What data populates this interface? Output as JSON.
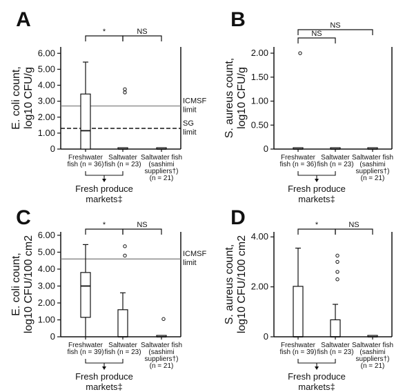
{
  "panels": [
    {
      "letter": "A",
      "chart_data": {
        "type": "box",
        "ylabel_line1": "E. coli count,",
        "ylabel_line2": "log10 CFU/g",
        "ylim": [
          0,
          6.4
        ],
        "yticks": [
          "0",
          "1.00",
          "2.00",
          "3.00",
          "4.00",
          "5.00",
          "6.00"
        ],
        "ytick_values": [
          0,
          1,
          2,
          3,
          4,
          5,
          6
        ],
        "categories": [
          {
            "line1": "Freshwater",
            "line2": "fish (n = 36)",
            "line3": "",
            "line4": ""
          },
          {
            "line1": "Saltwater",
            "line2": "fish (n = 23)",
            "line3": "",
            "line4": ""
          },
          {
            "line1": "Saltwater fish",
            "line2": "(sashimi",
            "line3": "suppliers†)",
            "line4": "(n = 21)"
          }
        ],
        "boxes": [
          {
            "whisker_low": 0,
            "q1": 0,
            "median": 1.15,
            "q3": 3.45,
            "whisker_high": 5.45,
            "outliers": []
          },
          {
            "whisker_low": 0,
            "q1": 0,
            "median": 0,
            "q3": 0,
            "whisker_high": 0,
            "outliers": [
              3.55,
              3.75
            ]
          },
          {
            "whisker_low": 0,
            "q1": 0,
            "median": 0,
            "q3": 0,
            "whisker_high": 0,
            "outliers": []
          }
        ],
        "ref_lines": [
          {
            "value": 2.7,
            "style": "solid",
            "label1": "ICMSF",
            "label2": "limit"
          },
          {
            "value": 1.3,
            "style": "dashed",
            "label1": "SG",
            "label2": "limit"
          }
        ],
        "comparisons": [
          {
            "from": 0,
            "to": 1,
            "label": "*",
            "level": 0
          },
          {
            "from": 1,
            "to": 2,
            "label": "NS",
            "level": 0
          }
        ],
        "group_label_line1": "Fresh produce",
        "group_label_line2": "markets‡"
      }
    },
    {
      "letter": "B",
      "chart_data": {
        "type": "box",
        "ylabel_line1": "S. aureus count,",
        "ylabel_line2": "log10 CFU/g",
        "ylim": [
          0,
          2.13
        ],
        "yticks": [
          "0",
          "0.50",
          "1.00",
          "1.50",
          "2.00"
        ],
        "ytick_values": [
          0,
          0.5,
          1,
          1.5,
          2
        ],
        "categories": [
          {
            "line1": "Freshwater",
            "line2": "fish (n = 36)",
            "line3": "",
            "line4": ""
          },
          {
            "line1": "Saltwater",
            "line2": "fish (n = 23)",
            "line3": "",
            "line4": ""
          },
          {
            "line1": "Saltwater fish",
            "line2": "(sashimi",
            "line3": "suppliers†)",
            "line4": "(n = 21)"
          }
        ],
        "boxes": [
          {
            "whisker_low": 0,
            "q1": 0,
            "median": 0,
            "q3": 0,
            "whisker_high": 0,
            "outliers": [
              2.0
            ]
          },
          {
            "whisker_low": 0,
            "q1": 0,
            "median": 0,
            "q3": 0,
            "whisker_high": 0,
            "outliers": []
          },
          {
            "whisker_low": 0,
            "q1": 0,
            "median": 0,
            "q3": 0,
            "whisker_high": 0,
            "outliers": []
          }
        ],
        "ref_lines": [],
        "comparisons": [
          {
            "from": 0,
            "to": 1,
            "label": "NS",
            "level": 0
          },
          {
            "from": 0,
            "to": 2,
            "label": "NS",
            "level": 1
          }
        ],
        "group_label_line1": "Fresh produce",
        "group_label_line2": "markets‡"
      }
    },
    {
      "letter": "C",
      "chart_data": {
        "type": "box",
        "ylabel_line1": "E. coli count,",
        "ylabel_line2": "log10 CFU/100 cm2",
        "ylim": [
          0,
          6.2
        ],
        "yticks": [
          "0",
          "1.00",
          "2.00",
          "3.00",
          "4.00",
          "5.00",
          "6.00"
        ],
        "ytick_values": [
          0,
          1,
          2,
          3,
          4,
          5,
          6
        ],
        "categories": [
          {
            "line1": "Freshwater",
            "line2": "fish (n = 39)",
            "line3": "",
            "line4": ""
          },
          {
            "line1": "Saltwater",
            "line2": "fish (n = 23)",
            "line3": "",
            "line4": ""
          },
          {
            "line1": "Saltwater fish",
            "line2": "(sashimi",
            "line3": "suppliers†)",
            "line4": "(n = 21)"
          }
        ],
        "boxes": [
          {
            "whisker_low": 0,
            "q1": 1.15,
            "median": 3.0,
            "q3": 3.8,
            "whisker_high": 5.45,
            "outliers": []
          },
          {
            "whisker_low": 0,
            "q1": 0,
            "median": 0,
            "q3": 1.6,
            "whisker_high": 2.6,
            "outliers": [
              4.8,
              5.35
            ]
          },
          {
            "whisker_low": 0,
            "q1": 0,
            "median": 0,
            "q3": 0.03,
            "whisker_high": 0.03,
            "outliers": [
              1.05
            ]
          }
        ],
        "ref_lines": [
          {
            "value": 4.6,
            "style": "solid",
            "label1": "ICMSF",
            "label2": "limit"
          }
        ],
        "comparisons": [
          {
            "from": 0,
            "to": 1,
            "label": "*",
            "level": 0
          },
          {
            "from": 1,
            "to": 2,
            "label": "NS",
            "level": 0
          }
        ],
        "group_label_line1": "Fresh produce",
        "group_label_line2": "markets‡"
      }
    },
    {
      "letter": "D",
      "chart_data": {
        "type": "box",
        "ylabel_line1": "S. aureus count,",
        "ylabel_line2": "log10 CFU/100 cm2",
        "ylim": [
          0,
          4.2
        ],
        "yticks": [
          "0",
          "2.00",
          "4.00"
        ],
        "ytick_values": [
          0,
          2,
          4
        ],
        "categories": [
          {
            "line1": "Freshwater",
            "line2": "fish (n = 39)",
            "line3": "",
            "line4": ""
          },
          {
            "line1": "Saltwater",
            "line2": "fish (n = 23)",
            "line3": "",
            "line4": ""
          },
          {
            "line1": "Saltwater fish",
            "line2": "(sashimi",
            "line3": "suppliers†)",
            "line4": "(n = 21)"
          }
        ],
        "boxes": [
          {
            "whisker_low": 0,
            "q1": 0,
            "median": 0,
            "q3": 2.02,
            "whisker_high": 3.55,
            "outliers": []
          },
          {
            "whisker_low": 0,
            "q1": 0,
            "median": 0,
            "q3": 0.68,
            "whisker_high": 1.3,
            "outliers": [
              2.3,
              2.6,
              3.0,
              3.25
            ]
          },
          {
            "whisker_low": 0,
            "q1": 0,
            "median": 0,
            "q3": 0.02,
            "whisker_high": 0.02,
            "outliers": []
          }
        ],
        "ref_lines": [],
        "comparisons": [
          {
            "from": 0,
            "to": 1,
            "label": "*",
            "level": 0
          },
          {
            "from": 1,
            "to": 2,
            "label": "NS",
            "level": 0
          }
        ],
        "group_label_line1": "Fresh produce",
        "group_label_line2": "markets‡"
      }
    }
  ]
}
